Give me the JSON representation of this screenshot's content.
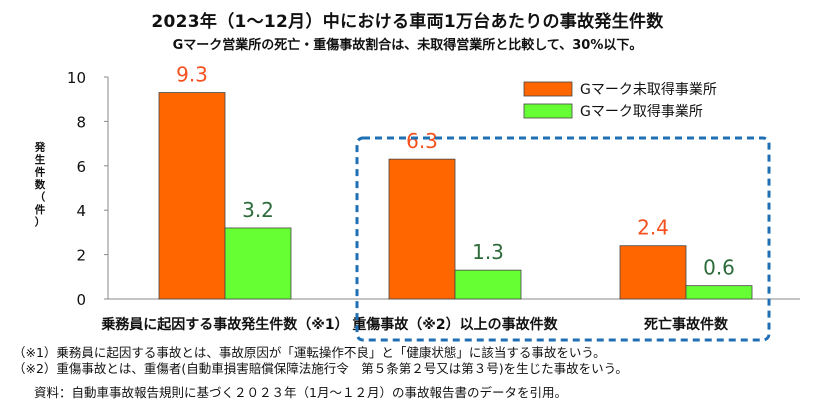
{
  "title": "2023年（1～12月）中における車両1万台あたりの事故発生件数",
  "subtitle": "Gマーク営業所の死亡・重傷事故割合は、未取得営業所と比較して、30%以下。",
  "chart_data": {
    "type": "bar",
    "categories": [
      "乗務員に起因する事故発生件数（※1）",
      "重傷事故（※2）以上の事故件数",
      "死亡事故件数"
    ],
    "series": [
      {
        "name": "Gマーク未取得事業所",
        "values": [
          9.3,
          6.3,
          2.4
        ],
        "color": "#FF6600",
        "label_color": "#F4511E"
      },
      {
        "name": "Gマーク取得事業所",
        "values": [
          3.2,
          1.3,
          0.6
        ],
        "color": "#66FF33",
        "label_color": "#2E6B3A"
      }
    ],
    "ylim": [
      0,
      10
    ],
    "yticks": [
      "0",
      "2",
      "4",
      "6",
      "8",
      "10"
    ],
    "ylabel": "発生件数（件）",
    "legend": "top-right",
    "grid": false,
    "highlight_box": {
      "style": "dashed",
      "color": "#1F6FB5",
      "categories": [
        1,
        2
      ]
    }
  },
  "notes": [
    "（※1）乗務員に起因する事故とは、事故原因が「運転操作不良」と「健康状態」に該当する事故をいう。",
    "（※2）重傷事故とは、重傷者(自動車損害賠償保障法施行令　第５条第２号又は第３号)を生じた事故をいう。"
  ],
  "source": "資料：自動車事故報告規則に基づく２０２３年（1月～１２月）の事故報告書のデータを引用。"
}
